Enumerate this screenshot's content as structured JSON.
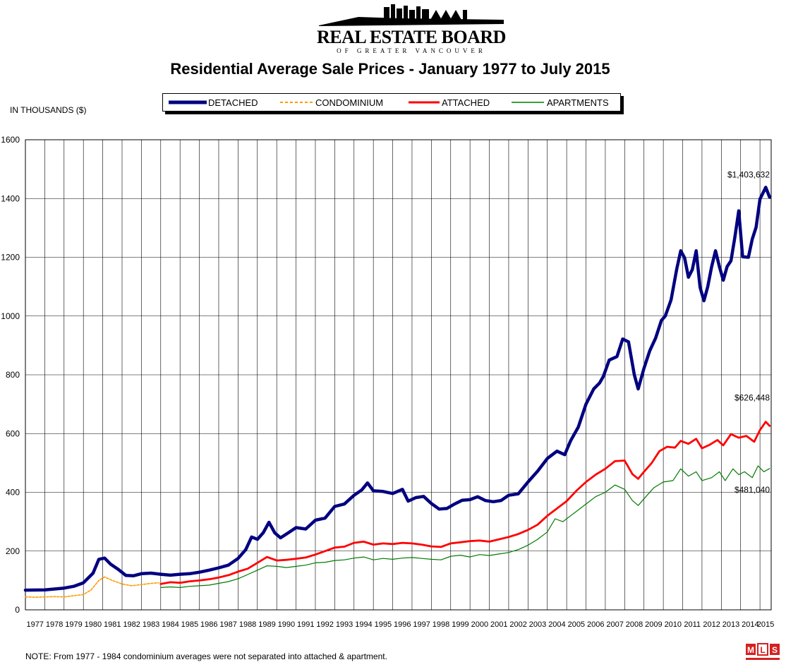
{
  "header": {
    "logo_main": "REAL ESTATE BOARD",
    "logo_sub": "OF GREATER VANCOUVER",
    "title": "Residential Average Sale Prices  -  January 1977 to July 2015"
  },
  "note": "NOTE:  From 1977 - 1984 condominium averages were not separated into attached & apartment.",
  "mls_logo": "MLS",
  "chart_data": {
    "type": "line",
    "title": "Residential Average Sale Prices  -  January 1977 to July 2015",
    "ylabel": "IN THOUSANDS ($)",
    "xlabel": "",
    "ylim": [
      0,
      1600
    ],
    "yticks": [
      0,
      200,
      400,
      600,
      800,
      1000,
      1200,
      1400,
      1600
    ],
    "xlim": [
      1977,
      2015.58
    ],
    "xticks": [
      "1977",
      "1978",
      "1979",
      "1980",
      "1981",
      "1982",
      "1983",
      "1984",
      "1985",
      "1986",
      "1987",
      "1988",
      "1989",
      "1990",
      "1991",
      "1992",
      "1993",
      "1994",
      "1995",
      "1996",
      "1997",
      "1998",
      "1999",
      "2000",
      "2001",
      "2002",
      "2003",
      "2004",
      "2005",
      "2006",
      "2007",
      "2008",
      "2009",
      "2010",
      "2011",
      "2012",
      "2013",
      "2014",
      "2015"
    ],
    "grid": true,
    "legend_position": "top",
    "series": [
      {
        "name": "DETACHED",
        "color": "#000080",
        "style": "thick",
        "points": [
          [
            1977.0,
            67
          ],
          [
            1978.0,
            68
          ],
          [
            1979.0,
            74
          ],
          [
            1979.5,
            80
          ],
          [
            1980.0,
            92
          ],
          [
            1980.5,
            125
          ],
          [
            1980.8,
            172
          ],
          [
            1981.1,
            176
          ],
          [
            1981.4,
            156
          ],
          [
            1981.8,
            138
          ],
          [
            1982.2,
            117
          ],
          [
            1982.6,
            116
          ],
          [
            1983.0,
            123
          ],
          [
            1983.5,
            125
          ],
          [
            1984.0,
            121
          ],
          [
            1984.5,
            118
          ],
          [
            1985.0,
            121
          ],
          [
            1985.5,
            123
          ],
          [
            1986.0,
            128
          ],
          [
            1986.5,
            135
          ],
          [
            1987.0,
            143
          ],
          [
            1987.5,
            152
          ],
          [
            1988.0,
            175
          ],
          [
            1988.4,
            205
          ],
          [
            1988.7,
            248
          ],
          [
            1989.0,
            240
          ],
          [
            1989.3,
            262
          ],
          [
            1989.6,
            298
          ],
          [
            1989.9,
            262
          ],
          [
            1990.2,
            245
          ],
          [
            1990.6,
            262
          ],
          [
            1991.0,
            280
          ],
          [
            1991.5,
            275
          ],
          [
            1992.0,
            305
          ],
          [
            1992.5,
            312
          ],
          [
            1993.0,
            352
          ],
          [
            1993.5,
            360
          ],
          [
            1994.0,
            390
          ],
          [
            1994.4,
            408
          ],
          [
            1994.7,
            432
          ],
          [
            1995.0,
            405
          ],
          [
            1995.5,
            403
          ],
          [
            1996.0,
            396
          ],
          [
            1996.5,
            410
          ],
          [
            1996.8,
            370
          ],
          [
            1997.2,
            382
          ],
          [
            1997.6,
            386
          ],
          [
            1998.0,
            362
          ],
          [
            1998.4,
            343
          ],
          [
            1998.8,
            345
          ],
          [
            1999.2,
            360
          ],
          [
            1999.6,
            373
          ],
          [
            2000.0,
            375
          ],
          [
            2000.4,
            385
          ],
          [
            2000.8,
            372
          ],
          [
            2001.2,
            368
          ],
          [
            2001.6,
            372
          ],
          [
            2002.0,
            390
          ],
          [
            2002.5,
            395
          ],
          [
            2003.0,
            435
          ],
          [
            2003.5,
            472
          ],
          [
            2004.0,
            515
          ],
          [
            2004.5,
            540
          ],
          [
            2004.9,
            528
          ],
          [
            2005.2,
            575
          ],
          [
            2005.6,
            622
          ],
          [
            2006.0,
            700
          ],
          [
            2006.4,
            752
          ],
          [
            2006.7,
            772
          ],
          [
            2006.9,
            795
          ],
          [
            2007.2,
            850
          ],
          [
            2007.6,
            862
          ],
          [
            2007.9,
            922
          ],
          [
            2008.2,
            912
          ],
          [
            2008.5,
            800
          ],
          [
            2008.7,
            752
          ],
          [
            2009.0,
            822
          ],
          [
            2009.3,
            882
          ],
          [
            2009.6,
            925
          ],
          [
            2009.9,
            985
          ],
          [
            2010.1,
            1000
          ],
          [
            2010.4,
            1055
          ],
          [
            2010.7,
            1162
          ],
          [
            2010.9,
            1222
          ],
          [
            2011.1,
            1198
          ],
          [
            2011.3,
            1132
          ],
          [
            2011.5,
            1158
          ],
          [
            2011.7,
            1222
          ],
          [
            2011.9,
            1098
          ],
          [
            2012.1,
            1052
          ],
          [
            2012.3,
            1100
          ],
          [
            2012.5,
            1168
          ],
          [
            2012.7,
            1222
          ],
          [
            2012.9,
            1168
          ],
          [
            2013.1,
            1122
          ],
          [
            2013.3,
            1168
          ],
          [
            2013.5,
            1188
          ],
          [
            2013.7,
            1268
          ],
          [
            2013.9,
            1358
          ],
          [
            2014.1,
            1202
          ],
          [
            2014.4,
            1200
          ],
          [
            2014.6,
            1262
          ],
          [
            2014.8,
            1302
          ],
          [
            2015.0,
            1398
          ],
          [
            2015.3,
            1438
          ],
          [
            2015.5,
            1404
          ]
        ]
      },
      {
        "name": "CONDOMINIUM",
        "color": "#FF9900",
        "style": "dashed",
        "points": [
          [
            1977.0,
            44
          ],
          [
            1977.5,
            43
          ],
          [
            1978.0,
            44
          ],
          [
            1978.5,
            45
          ],
          [
            1979.0,
            44
          ],
          [
            1979.5,
            48
          ],
          [
            1980.0,
            52
          ],
          [
            1980.4,
            68
          ],
          [
            1980.8,
            100
          ],
          [
            1981.1,
            112
          ],
          [
            1981.5,
            100
          ],
          [
            1982.0,
            88
          ],
          [
            1982.5,
            82
          ],
          [
            1983.0,
            86
          ],
          [
            1983.5,
            90
          ],
          [
            1983.9,
            92
          ]
        ]
      },
      {
        "name": "ATTACHED",
        "color": "#FF0000",
        "style": "medium",
        "points": [
          [
            1984.0,
            88
          ],
          [
            1984.5,
            94
          ],
          [
            1985.0,
            92
          ],
          [
            1985.5,
            97
          ],
          [
            1986.0,
            100
          ],
          [
            1986.5,
            104
          ],
          [
            1987.0,
            110
          ],
          [
            1987.5,
            118
          ],
          [
            1988.0,
            130
          ],
          [
            1988.5,
            140
          ],
          [
            1989.0,
            160
          ],
          [
            1989.5,
            180
          ],
          [
            1990.0,
            168
          ],
          [
            1990.5,
            170
          ],
          [
            1991.0,
            174
          ],
          [
            1991.5,
            178
          ],
          [
            1992.0,
            188
          ],
          [
            1992.5,
            200
          ],
          [
            1993.0,
            212
          ],
          [
            1993.5,
            215
          ],
          [
            1994.0,
            228
          ],
          [
            1994.5,
            232
          ],
          [
            1995.0,
            222
          ],
          [
            1995.5,
            226
          ],
          [
            1996.0,
            224
          ],
          [
            1996.5,
            228
          ],
          [
            1997.0,
            226
          ],
          [
            1997.5,
            222
          ],
          [
            1998.0,
            216
          ],
          [
            1998.5,
            214
          ],
          [
            1999.0,
            226
          ],
          [
            1999.5,
            230
          ],
          [
            2000.0,
            234
          ],
          [
            2000.5,
            236
          ],
          [
            2001.0,
            232
          ],
          [
            2001.5,
            240
          ],
          [
            2002.0,
            248
          ],
          [
            2002.5,
            258
          ],
          [
            2003.0,
            272
          ],
          [
            2003.5,
            290
          ],
          [
            2004.0,
            320
          ],
          [
            2004.5,
            345
          ],
          [
            2005.0,
            370
          ],
          [
            2005.5,
            405
          ],
          [
            2006.0,
            435
          ],
          [
            2006.5,
            460
          ],
          [
            2007.0,
            480
          ],
          [
            2007.5,
            506
          ],
          [
            2008.0,
            508
          ],
          [
            2008.4,
            462
          ],
          [
            2008.7,
            446
          ],
          [
            2009.0,
            470
          ],
          [
            2009.4,
            500
          ],
          [
            2009.8,
            540
          ],
          [
            2010.2,
            555
          ],
          [
            2010.6,
            552
          ],
          [
            2010.9,
            575
          ],
          [
            2011.3,
            565
          ],
          [
            2011.7,
            582
          ],
          [
            2012.0,
            550
          ],
          [
            2012.4,
            562
          ],
          [
            2012.8,
            578
          ],
          [
            2013.1,
            560
          ],
          [
            2013.5,
            598
          ],
          [
            2013.9,
            586
          ],
          [
            2014.3,
            592
          ],
          [
            2014.7,
            572
          ],
          [
            2015.0,
            612
          ],
          [
            2015.3,
            640
          ],
          [
            2015.5,
            626
          ]
        ]
      },
      {
        "name": "APARTMENTS",
        "color": "#007A00",
        "style": "thin",
        "points": [
          [
            1984.0,
            76
          ],
          [
            1984.5,
            78
          ],
          [
            1985.0,
            76
          ],
          [
            1985.5,
            80
          ],
          [
            1986.0,
            82
          ],
          [
            1986.5,
            84
          ],
          [
            1987.0,
            90
          ],
          [
            1987.5,
            96
          ],
          [
            1988.0,
            106
          ],
          [
            1988.5,
            120
          ],
          [
            1989.0,
            135
          ],
          [
            1989.5,
            150
          ],
          [
            1990.0,
            148
          ],
          [
            1990.5,
            144
          ],
          [
            1991.0,
            148
          ],
          [
            1991.5,
            152
          ],
          [
            1992.0,
            160
          ],
          [
            1992.5,
            162
          ],
          [
            1993.0,
            168
          ],
          [
            1993.5,
            170
          ],
          [
            1994.0,
            176
          ],
          [
            1994.5,
            180
          ],
          [
            1995.0,
            170
          ],
          [
            1995.5,
            175
          ],
          [
            1996.0,
            172
          ],
          [
            1996.5,
            176
          ],
          [
            1997.0,
            178
          ],
          [
            1997.5,
            175
          ],
          [
            1998.0,
            172
          ],
          [
            1998.5,
            170
          ],
          [
            1999.0,
            182
          ],
          [
            1999.5,
            186
          ],
          [
            2000.0,
            180
          ],
          [
            2000.5,
            188
          ],
          [
            2001.0,
            185
          ],
          [
            2001.5,
            190
          ],
          [
            2002.0,
            195
          ],
          [
            2002.5,
            205
          ],
          [
            2003.0,
            220
          ],
          [
            2003.5,
            240
          ],
          [
            2004.0,
            265
          ],
          [
            2004.4,
            310
          ],
          [
            2004.8,
            300
          ],
          [
            2005.2,
            320
          ],
          [
            2005.6,
            340
          ],
          [
            2006.0,
            360
          ],
          [
            2006.5,
            385
          ],
          [
            2007.0,
            400
          ],
          [
            2007.5,
            425
          ],
          [
            2008.0,
            410
          ],
          [
            2008.4,
            372
          ],
          [
            2008.7,
            355
          ],
          [
            2009.0,
            378
          ],
          [
            2009.5,
            415
          ],
          [
            2010.0,
            435
          ],
          [
            2010.5,
            440
          ],
          [
            2010.9,
            480
          ],
          [
            2011.3,
            455
          ],
          [
            2011.7,
            470
          ],
          [
            2012.0,
            440
          ],
          [
            2012.5,
            450
          ],
          [
            2012.9,
            470
          ],
          [
            2013.2,
            440
          ],
          [
            2013.6,
            480
          ],
          [
            2013.9,
            460
          ],
          [
            2014.2,
            470
          ],
          [
            2014.6,
            450
          ],
          [
            2014.9,
            490
          ],
          [
            2015.2,
            470
          ],
          [
            2015.5,
            481
          ]
        ]
      }
    ],
    "annotations": [
      {
        "text": "$1,403,632",
        "x": 2015.5,
        "y": 1404
      },
      {
        "text": "$626,448",
        "x": 2015.5,
        "y": 626
      },
      {
        "text": "$481,040",
        "x": 2015.5,
        "y": 481
      }
    ]
  }
}
